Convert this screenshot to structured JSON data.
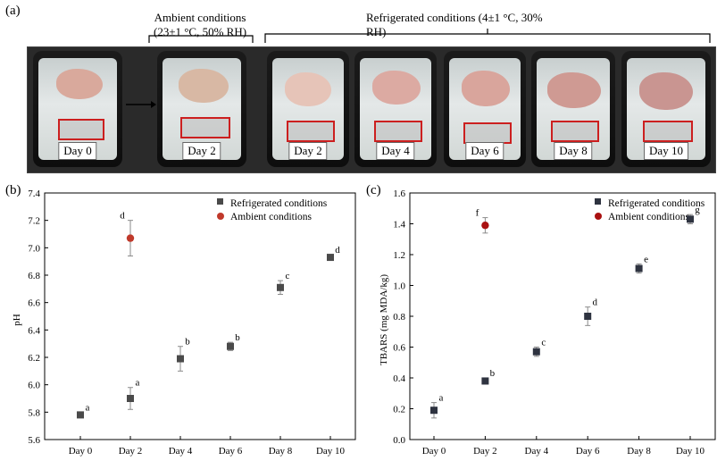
{
  "panels": {
    "a": "(a)",
    "b": "(b)",
    "c": "(c)"
  },
  "photos": {
    "ambient_header": "Ambient conditions",
    "ambient_detail": "(23±1 °C, 50% RH)",
    "refrig_header": "Refrigerated conditions (4±1 °C, 30%",
    "refrig_detail": "RH)",
    "days": [
      "Day 0",
      "Day 2",
      "Day 2",
      "Day 4",
      "Day 6",
      "Day 8",
      "Day 10"
    ]
  },
  "chart_data": [
    {
      "type": "scatter",
      "id": "pH",
      "title": "",
      "xlabel": "",
      "ylabel": "pH",
      "categories": [
        "Day 0",
        "Day 2",
        "Day 4",
        "Day 6",
        "Day 8",
        "Day 10"
      ],
      "ylim": [
        5.6,
        7.4
      ],
      "yticks": [
        "5.6",
        "5.8",
        "6.0",
        "6.2",
        "6.4",
        "6.6",
        "6.8",
        "7.0",
        "7.2",
        "7.4"
      ],
      "legend_position": "top-right",
      "series": [
        {
          "name": "Refrigerated conditions",
          "color": "#4a4a4a",
          "marker": "square",
          "values": [
            5.78,
            5.9,
            6.19,
            6.28,
            6.71,
            6.93
          ],
          "errors": [
            0.02,
            0.08,
            0.09,
            0.03,
            0.05,
            0.02
          ],
          "letters": [
            "a",
            "a",
            "b",
            "b",
            "c",
            "d"
          ]
        },
        {
          "name": "Ambient conditions",
          "color": "#c0392b",
          "marker": "circle",
          "x_index": [
            1
          ],
          "values": [
            7.07
          ],
          "errors": [
            0.13
          ],
          "letters": [
            "d"
          ]
        }
      ]
    },
    {
      "type": "scatter",
      "id": "TBARS",
      "title": "",
      "xlabel": "",
      "ylabel": "TBARS (mg MDA/kg)",
      "categories": [
        "Day 0",
        "Day 2",
        "Day 4",
        "Day 6",
        "Day 8",
        "Day 10"
      ],
      "ylim": [
        0.0,
        1.6
      ],
      "yticks": [
        "0.0",
        "0.2",
        "0.4",
        "0.6",
        "0.8",
        "1.0",
        "1.2",
        "1.4",
        "1.6"
      ],
      "legend_position": "top-right",
      "series": [
        {
          "name": "Refrigerated conditions",
          "color": "#2e3340",
          "marker": "square",
          "values": [
            0.19,
            0.38,
            0.57,
            0.8,
            1.11,
            1.43
          ],
          "errors": [
            0.05,
            0.02,
            0.03,
            0.06,
            0.03,
            0.03
          ],
          "letters": [
            "a",
            "b",
            "c",
            "d",
            "e",
            "g"
          ]
        },
        {
          "name": "Ambient conditions",
          "color": "#aa1111",
          "marker": "circle",
          "x_index": [
            1
          ],
          "values": [
            1.39
          ],
          "errors": [
            0.05
          ],
          "letters": [
            "f"
          ]
        }
      ]
    }
  ]
}
